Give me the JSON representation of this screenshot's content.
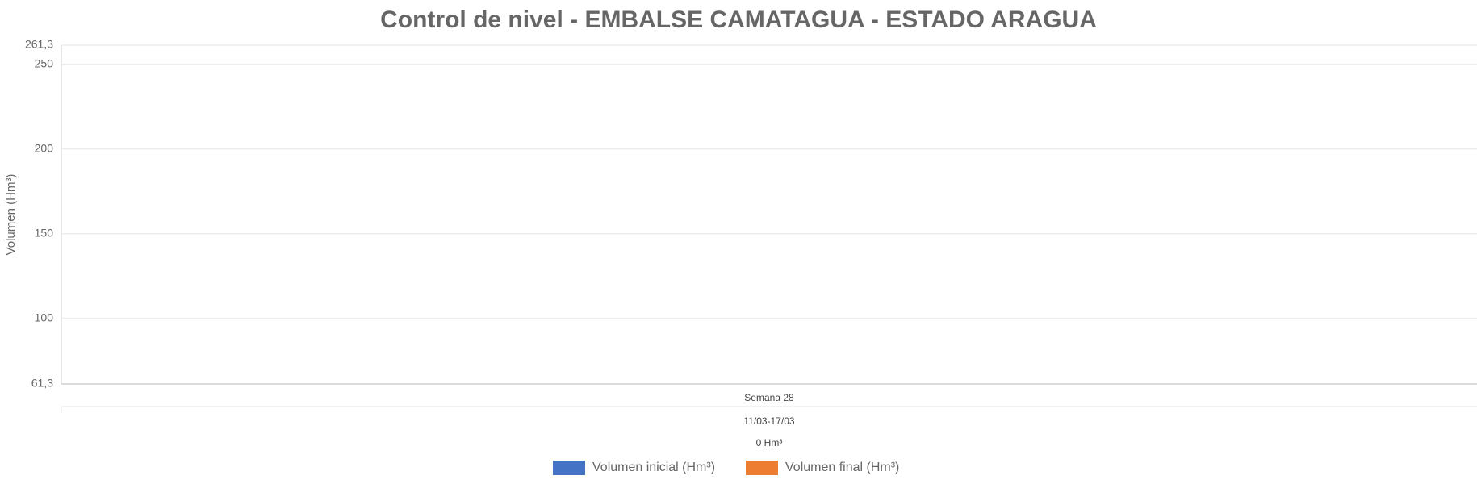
{
  "chart_data": {
    "type": "bar",
    "title": "Control de nivel - EMBALSE CAMATAGUA - ESTADO ARAGUA",
    "y_label": "Volumen (Hm³)",
    "categories": [
      "Semana 28"
    ],
    "category_dates": [
      "11/03-17/03"
    ],
    "category_differences": [
      "0 Hm³"
    ],
    "series": [
      {
        "name": "Volumen inicial (Hm³)",
        "color": "#4472c4",
        "values": [
          null
        ]
      },
      {
        "name": "Volumen final (Hm³)",
        "color": "#ed7d31",
        "values": [
          null
        ]
      }
    ],
    "ylim": [
      61.3,
      261.3
    ],
    "yticks": [
      {
        "value": 61.3,
        "label": "61,3"
      },
      100,
      150,
      200,
      250,
      {
        "value": 261.3,
        "label": "261,3"
      }
    ],
    "grid": true,
    "legend": "bottom"
  }
}
